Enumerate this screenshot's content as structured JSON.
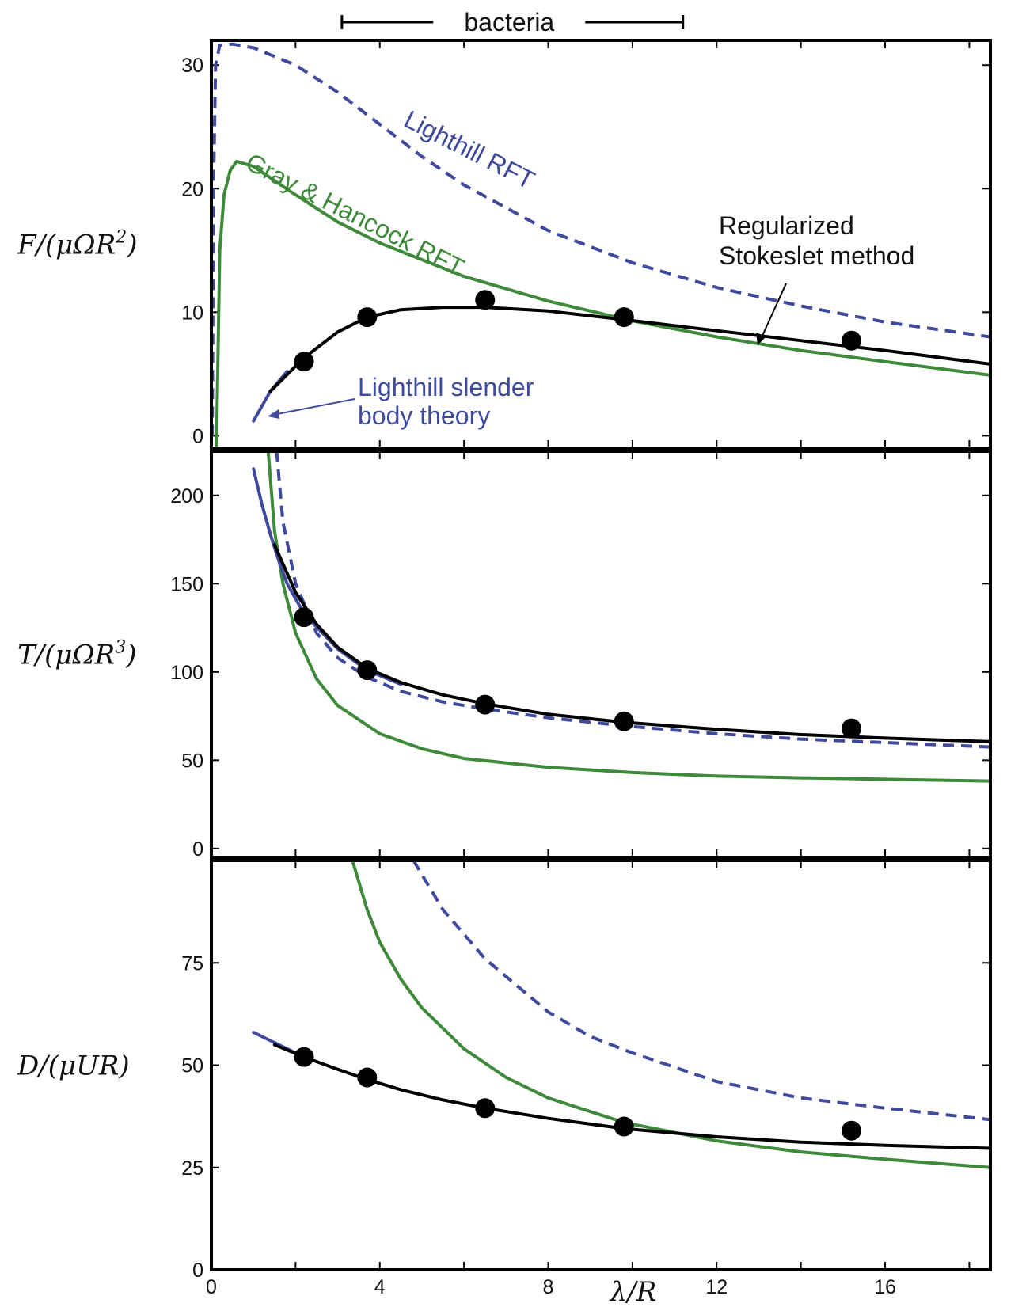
{
  "chart_data": {
    "type": "line",
    "colors": {
      "regularized": "#000000",
      "lighthill_rft": "#3f4a9c",
      "gray_hancock": "#3e8a3a",
      "lighthill_sbt": "#3f4a9c",
      "data": "#000000"
    },
    "shared_x": {
      "label_base": "λ/R",
      "xlim": [
        0,
        18.5
      ],
      "ticks": [
        0,
        4,
        8,
        12,
        16
      ],
      "tick_labels": [
        "0",
        "4",
        "8",
        "12",
        "16"
      ],
      "minor_ticks": [
        2,
        6,
        10,
        14,
        18
      ]
    },
    "bacteria_range": {
      "label": "bacteria",
      "x": [
        3.1,
        11.2
      ]
    },
    "panels": [
      {
        "ylabel_base": "F/(μΩR",
        "ylabel_exp": "2",
        "ylabel_end": ")",
        "ylim": [
          -1,
          32
        ],
        "yticks": [
          0,
          10,
          20,
          30
        ],
        "ytick_labels": [
          "0",
          "10",
          "20",
          "30"
        ],
        "series": [
          {
            "name": "Regularized Stokeslet method",
            "key": "regularized",
            "x": [
              1.4,
              2.2,
              3.0,
              3.7,
              4.5,
              5.5,
              6.5,
              8.0,
              9.8,
              12.0,
              14.0,
              16.0,
              18.5
            ],
            "y": [
              3.6,
              6.3,
              8.4,
              9.6,
              10.2,
              10.4,
              10.4,
              10.1,
              9.4,
              8.5,
              7.7,
              6.9,
              5.8
            ]
          },
          {
            "name": "Lighthill RFT",
            "key": "lighthill_rft",
            "x": [
              0.02,
              0.05,
              0.1,
              0.2,
              0.5,
              1.0,
              2.0,
              3.0,
              4.0,
              5.0,
              6.0,
              8.0,
              10.0,
              12.0,
              14.0,
              16.0,
              18.5
            ],
            "y": [
              0,
              20,
              30,
              31.6,
              31.7,
              31.4,
              30.0,
              27.8,
              25.2,
              22.6,
              20.3,
              16.6,
              14.0,
              12.0,
              10.5,
              9.2,
              8.0
            ]
          },
          {
            "name": "Gray & Hancock RFT",
            "key": "gray_hancock",
            "x": [
              0.12,
              0.2,
              0.3,
              0.45,
              0.6,
              1.0,
              2.0,
              3.0,
              4.0,
              6.0,
              8.0,
              10.0,
              12.0,
              14.0,
              16.0,
              18.5
            ],
            "y": [
              -1,
              15,
              19.5,
              21.5,
              22.2,
              21.8,
              19.5,
              17.3,
              15.6,
              12.9,
              10.9,
              9.3,
              8.0,
              6.9,
              6.0,
              4.9
            ]
          },
          {
            "name": "Lighthill slender body theory",
            "key": "lighthill_sbt",
            "x": [
              1.0,
              1.4,
              1.8
            ],
            "y": [
              1.2,
              3.6,
              5.2
            ]
          }
        ],
        "points": {
          "x": [
            2.2,
            3.7,
            6.5,
            9.8,
            15.2
          ],
          "y": [
            6.0,
            9.6,
            11.0,
            9.6,
            7.7
          ]
        }
      },
      {
        "ylabel_base": "T/(μΩR",
        "ylabel_exp": "3",
        "ylabel_end": ")",
        "ylim": [
          -5,
          225
        ],
        "yticks": [
          0,
          50,
          100,
          150,
          200
        ],
        "ytick_labels": [
          "0",
          "50",
          "100",
          "150",
          "200"
        ],
        "series": [
          {
            "name": "Regularized Stokeslet method",
            "key": "regularized",
            "x": [
              1.5,
              2.0,
              2.5,
              3.0,
              3.7,
              4.5,
              5.5,
              6.5,
              8.0,
              9.8,
              12.0,
              14.0,
              16.0,
              18.5
            ],
            "y": [
              172,
              145,
              127,
              114,
              102,
              94,
              87,
              82,
              76,
              71.5,
              67.5,
              64.5,
              62.5,
              60.5
            ]
          },
          {
            "name": "Lighthill RFT",
            "key": "lighthill_rft",
            "x": [
              1.55,
              1.7,
              2.0,
              2.5,
              3.0,
              3.7,
              4.5,
              5.5,
              6.5,
              8.0,
              9.8,
              12.0,
              14.0,
              16.0,
              18.5
            ],
            "y": [
              225,
              185,
              150,
              122,
              108,
              97,
              89,
              83,
              79,
              74,
              69.5,
              65,
              62,
              60,
              57.5
            ]
          },
          {
            "name": "Gray & Hancock RFT",
            "key": "gray_hancock",
            "x": [
              1.35,
              1.5,
              1.7,
              2.0,
              2.5,
              3.0,
              4.0,
              5.0,
              6.0,
              8.0,
              10.0,
              12.0,
              14.0,
              16.0,
              18.5
            ],
            "y": [
              225,
              180,
              150,
              122,
              96,
              81,
              65,
              56.5,
              51,
              46,
              43,
              41,
              40,
              39.2,
              38.2
            ]
          },
          {
            "name": "Lighthill slender body theory",
            "key": "lighthill_sbt",
            "x": [
              1.0,
              1.2,
              1.4,
              1.6,
              1.8,
              2.2,
              3.0,
              3.7,
              4.5
            ],
            "y": [
              215,
              195,
              178,
              163,
              150,
              133,
              113,
              101,
              93
            ]
          }
        ],
        "points": {
          "x": [
            2.2,
            3.7,
            6.5,
            9.8,
            15.2
          ],
          "y": [
            131,
            101,
            81.5,
            72,
            68
          ]
        }
      },
      {
        "ylabel_base": "D/(μUR)",
        "ylabel_exp": "",
        "ylabel_end": "",
        "ylim": [
          0,
          100
        ],
        "yticks": [
          0,
          25,
          50,
          75
        ],
        "ytick_labels": [
          "0",
          "25",
          "50",
          "75"
        ],
        "series": [
          {
            "name": "Regularized Stokeslet method",
            "key": "regularized",
            "x": [
              1.5,
              2.2,
              3.0,
              3.7,
              4.5,
              5.5,
              6.5,
              8.0,
              9.8,
              12.0,
              14.0,
              16.0,
              18.5
            ],
            "y": [
              55,
              52,
              49,
              46.5,
              44,
              41.5,
              39.5,
              37,
              34.5,
              32.5,
              31.2,
              30.4,
              29.7
            ]
          },
          {
            "name": "Lighthill RFT",
            "key": "lighthill_rft",
            "x": [
              4.8,
              5.5,
              6.5,
              8.0,
              9.0,
              10.0,
              12.0,
              14.0,
              16.0,
              18.5
            ],
            "y": [
              100,
              88,
              76,
              63,
              57,
              53,
              46,
              42,
              39.5,
              36.7
            ]
          },
          {
            "name": "Gray & Hancock RFT",
            "key": "gray_hancock",
            "x": [
              3.35,
              3.7,
              4.0,
              4.5,
              5.0,
              6.0,
              7.0,
              8.0,
              9.8,
              12.0,
              14.0,
              16.0,
              18.5
            ],
            "y": [
              100,
              88,
              80,
              71,
              64,
              54,
              47,
              42,
              36,
              31.5,
              28.8,
              27,
              25
            ]
          },
          {
            "name": "Lighthill slender body theory",
            "key": "lighthill_sbt",
            "x": [
              1.0,
              1.4,
              1.8,
              2.2
            ],
            "y": [
              58,
              56,
              54,
              52
            ]
          }
        ],
        "points": {
          "x": [
            2.2,
            3.7,
            6.5,
            9.8,
            15.2
          ],
          "y": [
            52,
            47,
            39.5,
            35,
            34
          ]
        }
      }
    ],
    "annotations": {
      "lighthill_rft_label": "Lighthill RFT",
      "gray_hancock_label": "Gray & Hancock RFT",
      "regularized_label_line1": "Regularized",
      "regularized_label_line2": "Stokeslet method",
      "sbt_label_line1": "Lighthill slender",
      "sbt_label_line2": "body theory"
    }
  }
}
